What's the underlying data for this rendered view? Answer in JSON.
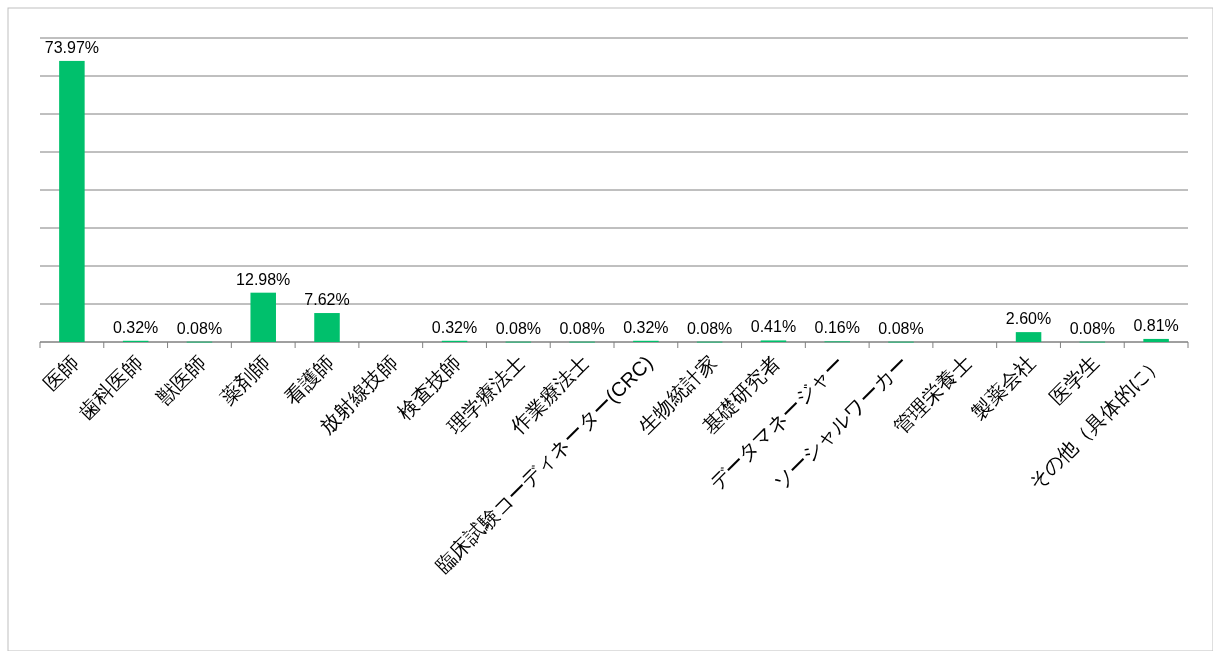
{
  "chart_data": {
    "type": "bar",
    "categories": [
      "医師",
      "歯科医師",
      "獣医師",
      "薬剤師",
      "看護師",
      "放射線技師",
      "検査技師",
      "理学療法士",
      "作業療法士",
      "臨床試験コーディネーター(CRC)",
      "生物統計家",
      "基礎研究者",
      "データマネージャー",
      "ソーシャルワーカー",
      "管理栄養士",
      "製薬会社",
      "医学生",
      "その他（具体的に）"
    ],
    "series": [
      {
        "color": "#00c06c",
        "values": [
          73.97,
          0.32,
          0.08,
          12.98,
          7.62,
          null,
          0.32,
          0.08,
          0.08,
          0.32,
          0.08,
          0.41,
          0.16,
          0.08,
          null,
          2.6,
          0.08,
          0.81
        ],
        "value_labels": [
          "73.97%",
          "0.32%",
          "0.08%",
          "12.98%",
          "7.62%",
          null,
          "0.32%",
          "0.08%",
          "0.08%",
          "0.32%",
          "0.08%",
          "0.41%",
          "0.16%",
          "0.08%",
          null,
          "2.60%",
          "0.08%",
          "0.81%"
        ]
      }
    ],
    "ylim": [
      0,
      80
    ],
    "yticks": [
      {
        "value": 0,
        "label": null
      },
      {
        "value": 10,
        "label": null
      },
      {
        "value": 20,
        "label": null
      },
      {
        "value": 30,
        "label": null
      },
      {
        "value": 40,
        "label": null
      },
      {
        "value": 50,
        "label": null
      },
      {
        "value": 60,
        "label": null
      },
      {
        "value": 70,
        "label": null
      },
      {
        "value": 80,
        "label": null
      }
    ],
    "grid": "y",
    "tick_labels": "x"
  }
}
